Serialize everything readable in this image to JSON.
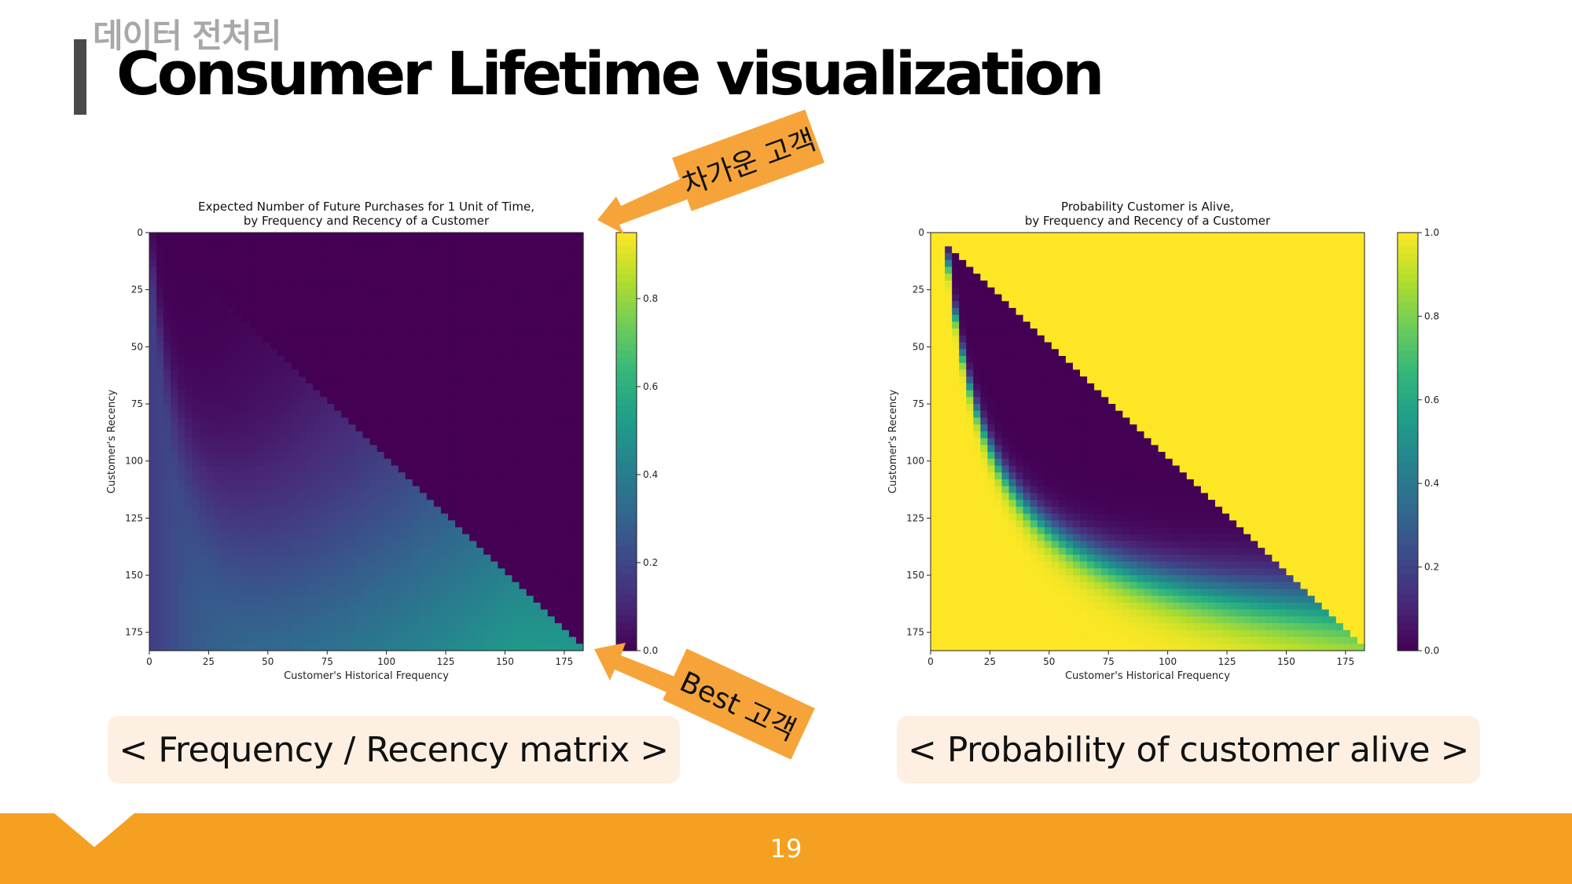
{
  "header": {
    "section_label": "데이터 전처리",
    "title": "Consumer Lifetime visualization"
  },
  "callouts": {
    "cold_customer": "차가운 고객",
    "best_customer": "Best 고객"
  },
  "captions": {
    "left": "< Frequency / Recency matrix >",
    "right": "< Probability of customer alive >"
  },
  "footer": {
    "page_number": "19"
  },
  "colors": {
    "accent_orange": "#f5a020",
    "callout_orange": "#f6a43a",
    "caption_bg": "#fdf0e2",
    "viridis_low": "#440154",
    "viridis_high": "#fde725"
  },
  "chart_data": [
    {
      "type": "heatmap",
      "title": [
        "Expected Number of Future Purchases for 1 Unit of Time,",
        "by Frequency and Recency of a Customer"
      ],
      "xlabel": "Customer's Historical Frequency",
      "ylabel": "Customer's Recency",
      "xticks": [
        "0",
        "25",
        "50",
        "75",
        "100",
        "125",
        "150",
        "175"
      ],
      "yticks": [
        "0",
        "25",
        "50",
        "75",
        "100",
        "125",
        "150",
        "175"
      ],
      "xlim": [
        0,
        183
      ],
      "ylim": [
        0,
        183
      ],
      "colormap": "viridis",
      "colorbar_ticks": [
        "0.0",
        "0.2",
        "0.4",
        "0.6",
        "0.8"
      ],
      "colorbar_range": [
        0,
        0.95
      ],
      "description_values": {
        "high_region": "bottom-right (high frequency, recency ~175)",
        "max_value": 0.95
      }
    },
    {
      "type": "heatmap",
      "title": [
        "Probability Customer is Alive,",
        "by Frequency and Recency of a Customer"
      ],
      "xlabel": "Customer's Historical Frequency",
      "ylabel": "Customer's Recency",
      "xticks": [
        "0",
        "25",
        "50",
        "75",
        "100",
        "125",
        "150",
        "175"
      ],
      "yticks": [
        "0",
        "25",
        "50",
        "75",
        "100",
        "125",
        "150",
        "175"
      ],
      "xlim": [
        0,
        183
      ],
      "ylim": [
        0,
        183
      ],
      "colormap": "viridis",
      "colorbar_ticks": [
        "0.0",
        "0.2",
        "0.4",
        "0.6",
        "0.8",
        "1.0"
      ],
      "colorbar_range": [
        0,
        1.0
      ],
      "description_values": {
        "high_region": "bottom-left band (recency close to frequency)",
        "max_value": 1.0
      }
    }
  ]
}
